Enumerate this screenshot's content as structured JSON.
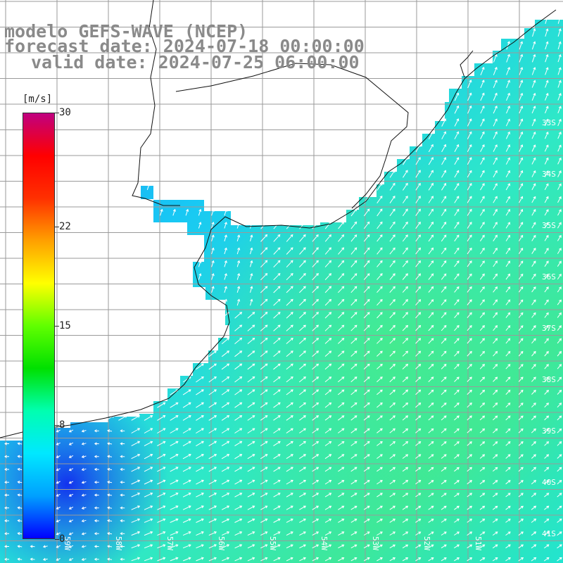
{
  "title": {
    "line1": "modelo GEFS-WAVE (NCEP)",
    "line2": "forecast date: 2024-07-18 00:00:00",
    "line3": "valid date: 2024-07-25 06:00:00"
  },
  "colorbar": {
    "unit": "[m/s]",
    "min": 0,
    "max": 30,
    "ticks": [
      "30",
      "22",
      "15",
      "8",
      "0"
    ],
    "tick_values": [
      30,
      22,
      15,
      8,
      0
    ],
    "palette": [
      "#0000ff",
      "#00a0ff",
      "#00e8ff",
      "#00ffb0",
      "#00e000",
      "#60ff00",
      "#ffff00",
      "#ffa000",
      "#ff3000",
      "#ff0000",
      "#c00080"
    ]
  },
  "map": {
    "lat_labels": [
      "33S",
      "34S",
      "35S",
      "36S",
      "37S",
      "38S",
      "39S",
      "40S",
      "41S"
    ],
    "lon_labels": [
      "59W",
      "58W",
      "57W",
      "56W",
      "55W",
      "54W",
      "53W",
      "52W",
      "51W"
    ],
    "ocean_colors": {
      "near_coast": "#1f8cf5",
      "shelf": "#18c8f4",
      "open": "#2ee8c8",
      "peak": "#3ee89a",
      "calm": "#1846f0"
    },
    "land_color": "#ffffff",
    "grid_color": "#9a9a9a",
    "arrow_color": "#ffffff"
  }
}
